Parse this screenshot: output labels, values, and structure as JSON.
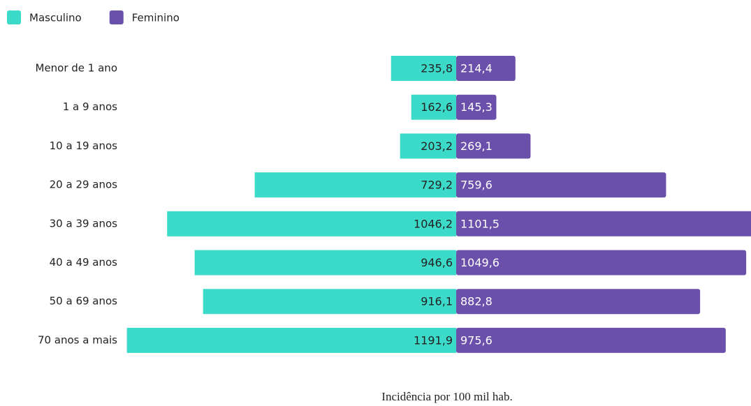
{
  "chart_data": {
    "type": "pyramid",
    "x_label": "Incidência por 100 mil hab.",
    "categories": [
      "Menor de 1 ano",
      "1 a 9 anos",
      "10 a 19 anos",
      "20 a 29 anos",
      "30 a 39 anos",
      "40 a 49 anos",
      "50 a 69 anos",
      "70 anos a mais"
    ],
    "series": [
      {
        "name": "Masculino",
        "color": "#3cdbc9",
        "values": [
          235.8,
          162.6,
          203.2,
          729.2,
          1046.2,
          946.6,
          916.1,
          1191.9
        ],
        "value_labels": [
          "235,8",
          "162,6",
          "203,2",
          "729,2",
          "1046,2",
          "946,6",
          "916,1",
          "1191,9"
        ]
      },
      {
        "name": "Feminino",
        "color": "#6a4fab",
        "values": [
          214.4,
          145.3,
          269.1,
          759.6,
          1101.5,
          1049.6,
          882.8,
          975.6
        ],
        "value_labels": [
          "214,4",
          "145,3",
          "269,1",
          "759,6",
          "1101,5",
          "1049,6",
          "882,8",
          "975,6"
        ]
      }
    ]
  }
}
